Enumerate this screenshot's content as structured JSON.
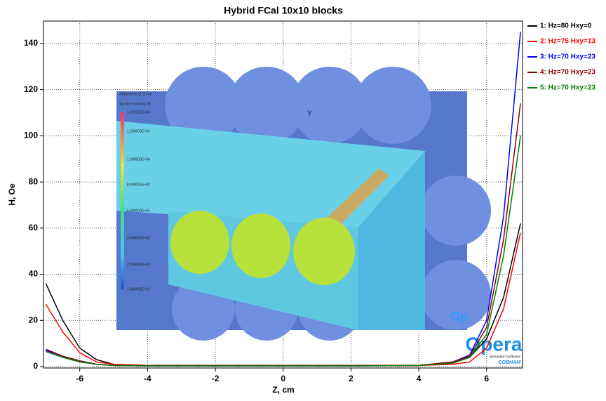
{
  "chart_data": {
    "type": "line",
    "title": "Hybrid FCal 10x10 blocks",
    "x_label": "Z, cm",
    "y_label": "H, Oe",
    "x": [
      -7,
      -6.5,
      -6,
      -5.5,
      -5,
      -4,
      -2,
      0,
      2,
      4,
      5,
      5.5,
      6,
      6.5,
      7
    ],
    "series": [
      {
        "name": "1: Hz=80 Hxy=0",
        "color": "#000000",
        "values": [
          36,
          20,
          8,
          3,
          1,
          0.5,
          0.5,
          0.5,
          0.5,
          0.5,
          1.5,
          4,
          12,
          30,
          62
        ]
      },
      {
        "name": "2: Hz=75 Hxy=13",
        "color": "#ff0000",
        "values": [
          27,
          15,
          6,
          2,
          1,
          0.5,
          0.5,
          0.5,
          0.5,
          0.5,
          1,
          2,
          8,
          25,
          58
        ]
      },
      {
        "name": "3: Hz=70 Hxy=23",
        "color": "#0000ff",
        "values": [
          7,
          4.5,
          2.5,
          1,
          0.5,
          0.3,
          0.3,
          0.3,
          0.3,
          0.5,
          2,
          5,
          20,
          65,
          145
        ]
      },
      {
        "name": "4: Hz=70 Hxy=23",
        "color": "#8b0000",
        "values": [
          7.5,
          4.5,
          2.5,
          1,
          0.5,
          0.3,
          0.3,
          0.3,
          0.3,
          0.5,
          2,
          4.5,
          17,
          55,
          114
        ]
      },
      {
        "name": "5: Hz=70 Hxy=23",
        "color": "#008000",
        "values": [
          6.5,
          4,
          2,
          1,
          0.5,
          0.3,
          0.3,
          0.3,
          0.3,
          0.5,
          1.5,
          4,
          14,
          48,
          100
        ]
      }
    ],
    "xlim": [
      -7.07,
      7.06
    ],
    "ylim": [
      -0.6,
      149.7
    ],
    "xticks": [
      -6,
      -4,
      -2,
      0,
      2,
      4,
      6
    ],
    "yticks": [
      0,
      20,
      40,
      60,
      80,
      100,
      120,
      140
    ],
    "grid": true
  },
  "inset": {
    "timestamp": "2/Mar/2016 11:18:44",
    "caption": "Surface contours: B",
    "scale_labels": [
      "1.359132E+04",
      "1.200000E+04",
      "1.000000E+04",
      "8.000000E+03",
      "6.000000E+03",
      "4.000000E+03",
      "2.000000E+03",
      "1.408498E+01"
    ],
    "corner": "Op",
    "axis": "Y"
  },
  "logo": {
    "name": "Opera",
    "tagline": "Simulation Software",
    "company": "COBHAM"
  }
}
